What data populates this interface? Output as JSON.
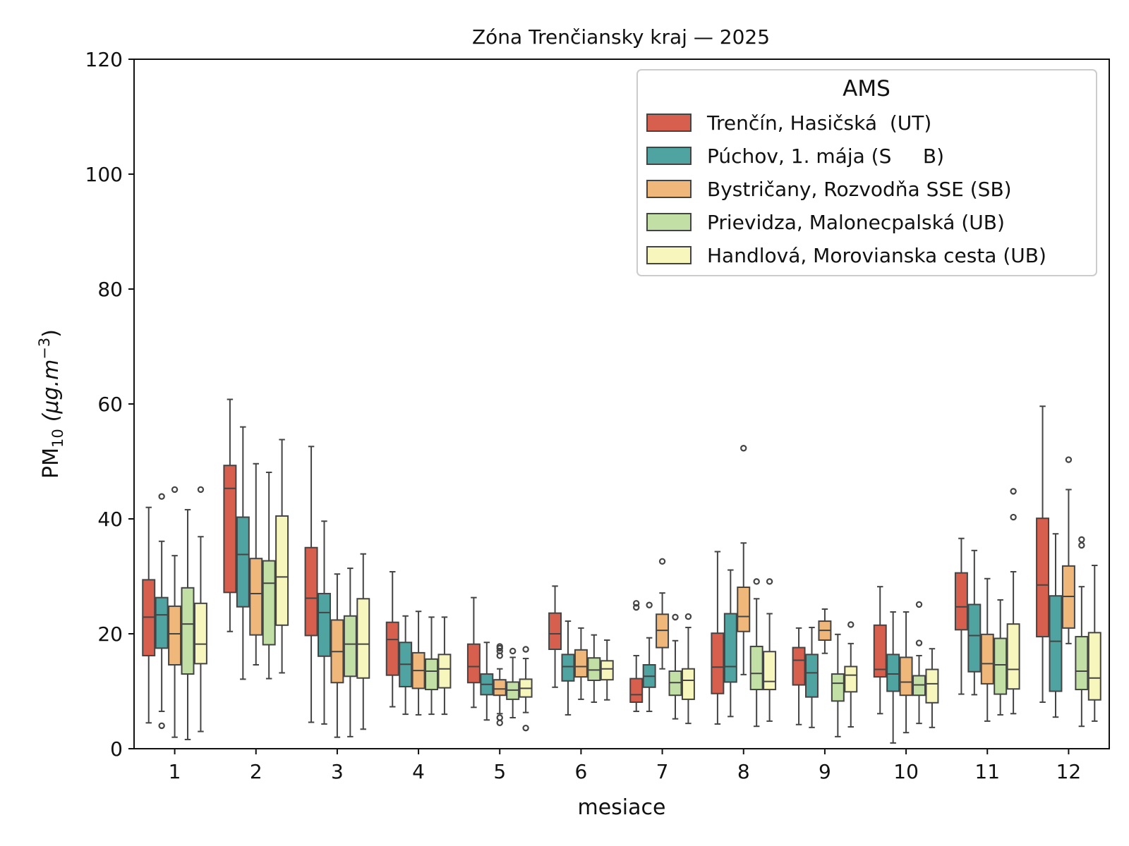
{
  "chart_data": {
    "type": "boxplot",
    "title": "Zóna Trenčiansky kraj —  2025",
    "xlabel": "mesiace",
    "ylabel_main": "PM",
    "ylabel_sub": "10",
    "ylabel_unit": "(μg.m",
    "ylabel_exp": "−3",
    "ylabel_close": ")",
    "ylim": [
      0,
      120
    ],
    "yticks": [
      "0",
      "20",
      "40",
      "60",
      "80",
      "100",
      "120"
    ],
    "categories": [
      "1",
      "2",
      "3",
      "4",
      "5",
      "6",
      "7",
      "8",
      "9",
      "10",
      "11",
      "12"
    ],
    "legend": {
      "title": "AMS",
      "position": "upper right"
    },
    "series": [
      {
        "name": "Trenčín, Hasičská  (UT)",
        "color": "#d6604d",
        "boxes": [
          {
            "whislo": 4.5,
            "q1": 16.2,
            "med": 22.9,
            "q3": 29.4,
            "whishi": 42.0,
            "fliers": []
          },
          {
            "whislo": 20.4,
            "q1": 27.2,
            "med": 45.3,
            "q3": 49.3,
            "whishi": 60.8,
            "fliers": []
          },
          {
            "whislo": 4.6,
            "q1": 19.7,
            "med": 26.2,
            "q3": 35.0,
            "whishi": 52.6,
            "fliers": []
          },
          {
            "whislo": 7.3,
            "q1": 12.8,
            "med": 19.0,
            "q3": 22.0,
            "whishi": 30.8,
            "fliers": []
          },
          {
            "whislo": 7.2,
            "q1": 11.5,
            "med": 14.3,
            "q3": 18.2,
            "whishi": 26.3,
            "fliers": []
          },
          {
            "whislo": 10.7,
            "q1": 17.3,
            "med": 20.0,
            "q3": 23.6,
            "whishi": 28.3,
            "fliers": []
          },
          {
            "whislo": 6.5,
            "q1": 8.1,
            "med": 9.4,
            "q3": 12.2,
            "whishi": 16.2,
            "fliers": [
              24.6,
              25.3
            ]
          },
          {
            "whislo": 4.3,
            "q1": 9.6,
            "med": 14.2,
            "q3": 20.1,
            "whishi": 34.3,
            "fliers": []
          },
          {
            "whislo": 4.2,
            "q1": 11.1,
            "med": 15.4,
            "q3": 17.6,
            "whishi": 21.0,
            "fliers": []
          },
          {
            "whislo": 6.1,
            "q1": 12.5,
            "med": 13.8,
            "q3": 21.5,
            "whishi": 28.2,
            "fliers": []
          },
          {
            "whislo": 9.5,
            "q1": 20.7,
            "med": 24.7,
            "q3": 30.6,
            "whishi": 36.6,
            "fliers": []
          },
          {
            "whislo": 8.1,
            "q1": 19.5,
            "med": 28.5,
            "q3": 40.1,
            "whishi": 59.6,
            "fliers": []
          }
        ]
      },
      {
        "name": "Púchov, 1. mája (S     B)",
        "color": "#4fa3a0",
        "boxes": [
          {
            "whislo": 6.5,
            "q1": 17.5,
            "med": 23.3,
            "q3": 26.3,
            "whishi": 36.1,
            "fliers": [
              4.0,
              43.9
            ]
          },
          {
            "whislo": 12.1,
            "q1": 24.7,
            "med": 33.8,
            "q3": 40.3,
            "whishi": 56.0,
            "fliers": []
          },
          {
            "whislo": 4.3,
            "q1": 16.1,
            "med": 23.7,
            "q3": 27.0,
            "whishi": 39.6,
            "fliers": []
          },
          {
            "whislo": 6.0,
            "q1": 10.8,
            "med": 14.7,
            "q3": 18.5,
            "whishi": 23.1,
            "fliers": []
          },
          {
            "whislo": 5.0,
            "q1": 9.4,
            "med": 11.2,
            "q3": 13.0,
            "whishi": 18.5,
            "fliers": []
          },
          {
            "whislo": 5.9,
            "q1": 11.8,
            "med": 14.3,
            "q3": 16.4,
            "whishi": 22.2,
            "fliers": []
          },
          {
            "whislo": 6.5,
            "q1": 10.7,
            "med": 12.6,
            "q3": 14.6,
            "whishi": 19.3,
            "fliers": [
              25.0
            ]
          },
          {
            "whislo": 5.6,
            "q1": 11.6,
            "med": 14.3,
            "q3": 23.5,
            "whishi": 31.1,
            "fliers": []
          },
          {
            "whislo": 3.7,
            "q1": 9.0,
            "med": 13.2,
            "q3": 16.4,
            "whishi": 21.1,
            "fliers": []
          },
          {
            "whislo": 1.0,
            "q1": 10.0,
            "med": 13.0,
            "q3": 16.4,
            "whishi": 23.8,
            "fliers": []
          },
          {
            "whislo": 9.4,
            "q1": 13.4,
            "med": 19.7,
            "q3": 25.1,
            "whishi": 34.5,
            "fliers": []
          },
          {
            "whislo": 5.5,
            "q1": 10.0,
            "med": 18.7,
            "q3": 26.6,
            "whishi": 37.4,
            "fliers": []
          }
        ]
      },
      {
        "name": "Bystričany, Rozvodňa SSE (SB)",
        "color": "#f0b77a",
        "boxes": [
          {
            "whislo": 2.0,
            "q1": 14.6,
            "med": 20.0,
            "q3": 24.8,
            "whishi": 33.6,
            "fliers": [
              45.1
            ]
          },
          {
            "whislo": 14.6,
            "q1": 19.8,
            "med": 27.0,
            "q3": 33.1,
            "whishi": 49.6,
            "fliers": []
          },
          {
            "whislo": 2.0,
            "q1": 11.5,
            "med": 16.9,
            "q3": 22.4,
            "whishi": 30.4,
            "fliers": []
          },
          {
            "whislo": 5.9,
            "q1": 10.5,
            "med": 13.6,
            "q3": 16.7,
            "whishi": 23.9,
            "fliers": []
          },
          {
            "whislo": 6.1,
            "q1": 9.3,
            "med": 10.4,
            "q3": 12.0,
            "whishi": 13.9,
            "fliers": [
              4.5,
              5.4,
              16.2,
              17.0,
              17.5,
              17.8
            ]
          },
          {
            "whislo": 8.6,
            "q1": 12.5,
            "med": 14.3,
            "q3": 17.2,
            "whishi": 21.0,
            "fliers": []
          },
          {
            "whislo": 13.9,
            "q1": 17.6,
            "med": 20.6,
            "q3": 23.4,
            "whishi": 27.1,
            "fliers": [
              32.6
            ]
          },
          {
            "whislo": 12.9,
            "q1": 20.4,
            "med": 23.0,
            "q3": 28.1,
            "whishi": 35.8,
            "fliers": [
              52.3
            ]
          },
          {
            "whislo": 16.6,
            "q1": 18.9,
            "med": 20.6,
            "q3": 22.2,
            "whishi": 24.3,
            "fliers": []
          },
          {
            "whislo": 2.8,
            "q1": 9.3,
            "med": 11.6,
            "q3": 15.9,
            "whishi": 23.8,
            "fliers": []
          },
          {
            "whislo": 4.8,
            "q1": 11.3,
            "med": 14.8,
            "q3": 19.9,
            "whishi": 29.6,
            "fliers": []
          },
          {
            "whislo": 18.3,
            "q1": 21.0,
            "med": 26.5,
            "q3": 31.8,
            "whishi": 45.1,
            "fliers": [
              50.3
            ]
          }
        ]
      },
      {
        "name": "Prievidza, Malonecpalská (UB)",
        "color": "#c2e0a5",
        "boxes": [
          {
            "whislo": 1.6,
            "q1": 13.0,
            "med": 21.7,
            "q3": 28.0,
            "whishi": 41.6,
            "fliers": []
          },
          {
            "whislo": 12.2,
            "q1": 18.1,
            "med": 28.8,
            "q3": 32.7,
            "whishi": 48.1,
            "fliers": []
          },
          {
            "whislo": 2.1,
            "q1": 12.6,
            "med": 18.2,
            "q3": 23.1,
            "whishi": 31.4,
            "fliers": []
          },
          {
            "whislo": 6.0,
            "q1": 10.3,
            "med": 13.5,
            "q3": 15.6,
            "whishi": 22.9,
            "fliers": []
          },
          {
            "whislo": 5.4,
            "q1": 8.6,
            "med": 10.2,
            "q3": 11.6,
            "whishi": 15.9,
            "fliers": [
              17.0
            ]
          },
          {
            "whislo": 8.1,
            "q1": 11.9,
            "med": 13.7,
            "q3": 15.8,
            "whishi": 19.8,
            "fliers": []
          },
          {
            "whislo": 5.2,
            "q1": 9.3,
            "med": 11.5,
            "q3": 13.5,
            "whishi": 18.8,
            "fliers": [
              22.9
            ]
          },
          {
            "whislo": 3.9,
            "q1": 10.3,
            "med": 13.1,
            "q3": 17.8,
            "whishi": 26.1,
            "fliers": [
              29.1
            ]
          },
          {
            "whislo": 2.1,
            "q1": 8.3,
            "med": 11.4,
            "q3": 13.0,
            "whishi": 19.9,
            "fliers": []
          },
          {
            "whislo": 4.4,
            "q1": 9.3,
            "med": 11.1,
            "q3": 12.7,
            "whishi": 16.2,
            "fliers": [
              18.4,
              25.1
            ]
          },
          {
            "whislo": 5.9,
            "q1": 9.5,
            "med": 14.6,
            "q3": 19.2,
            "whishi": 25.9,
            "fliers": []
          },
          {
            "whislo": 3.9,
            "q1": 10.3,
            "med": 13.5,
            "q3": 19.5,
            "whishi": 28.2,
            "fliers": [
              35.4,
              36.4
            ]
          }
        ]
      },
      {
        "name": "Handlová, Morovianska cesta (UB)",
        "color": "#f7f6bc",
        "boxes": [
          {
            "whislo": 3.0,
            "q1": 14.8,
            "med": 18.2,
            "q3": 25.3,
            "whishi": 36.9,
            "fliers": [
              45.1
            ]
          },
          {
            "whislo": 13.2,
            "q1": 21.5,
            "med": 29.9,
            "q3": 40.5,
            "whishi": 53.8,
            "fliers": []
          },
          {
            "whislo": 3.4,
            "q1": 12.3,
            "med": 18.2,
            "q3": 26.1,
            "whishi": 33.9,
            "fliers": []
          },
          {
            "whislo": 6.0,
            "q1": 10.6,
            "med": 13.9,
            "q3": 16.4,
            "whishi": 22.9,
            "fliers": []
          },
          {
            "whislo": 6.3,
            "q1": 9.0,
            "med": 10.5,
            "q3": 12.1,
            "whishi": 15.7,
            "fliers": [
              3.6,
              17.3
            ]
          },
          {
            "whislo": 8.5,
            "q1": 12.0,
            "med": 13.9,
            "q3": 15.3,
            "whishi": 18.9,
            "fliers": []
          },
          {
            "whislo": 4.4,
            "q1": 8.6,
            "med": 11.9,
            "q3": 13.9,
            "whishi": 21.1,
            "fliers": [
              23.0
            ]
          },
          {
            "whislo": 4.8,
            "q1": 10.3,
            "med": 11.7,
            "q3": 16.9,
            "whishi": 23.5,
            "fliers": [
              29.1
            ]
          },
          {
            "whislo": 3.8,
            "q1": 9.9,
            "med": 12.8,
            "q3": 14.3,
            "whishi": 18.3,
            "fliers": [
              21.6
            ]
          },
          {
            "whislo": 3.7,
            "q1": 8.0,
            "med": 11.3,
            "q3": 13.8,
            "whishi": 17.4,
            "fliers": []
          },
          {
            "whislo": 6.1,
            "q1": 10.4,
            "med": 13.8,
            "q3": 21.7,
            "whishi": 30.8,
            "fliers": [
              40.3,
              44.8
            ]
          },
          {
            "whislo": 4.8,
            "q1": 8.5,
            "med": 12.3,
            "q3": 20.2,
            "whishi": 31.9,
            "fliers": []
          }
        ]
      }
    ]
  }
}
